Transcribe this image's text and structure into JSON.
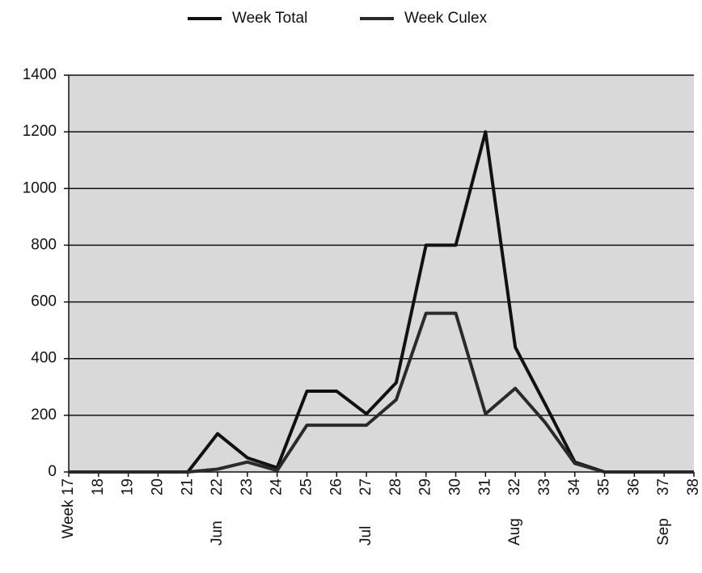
{
  "chart_data": {
    "type": "line",
    "categories": [
      "Week 17",
      "18",
      "19",
      "20",
      "21",
      "22",
      "23",
      "24",
      "25",
      "26",
      "27",
      "28",
      "29",
      "30",
      "31",
      "32",
      "33",
      "34",
      "35",
      "36",
      "37",
      "38"
    ],
    "months": [
      null,
      null,
      null,
      null,
      null,
      "Jun",
      null,
      null,
      null,
      null,
      "Jul",
      null,
      null,
      null,
      null,
      "Aug",
      null,
      null,
      null,
      null,
      "Sep",
      null
    ],
    "series": [
      {
        "name": "Week Total",
        "color": "#111111",
        "values": [
          0,
          0,
          0,
          0,
          0,
          135,
          50,
          15,
          285,
          285,
          205,
          315,
          800,
          800,
          1200,
          440,
          240,
          35,
          0,
          0,
          0,
          0
        ]
      },
      {
        "name": "Week Culex",
        "color": "#2a2a2a",
        "values": [
          0,
          0,
          0,
          0,
          0,
          10,
          35,
          5,
          165,
          165,
          165,
          255,
          560,
          560,
          205,
          295,
          175,
          30,
          0,
          0,
          0,
          0
        ]
      }
    ],
    "ylim": [
      0,
      1400
    ],
    "yticks": [
      0,
      200,
      400,
      600,
      800,
      1000,
      1200,
      1400
    ],
    "grid": true,
    "legend": "top"
  }
}
